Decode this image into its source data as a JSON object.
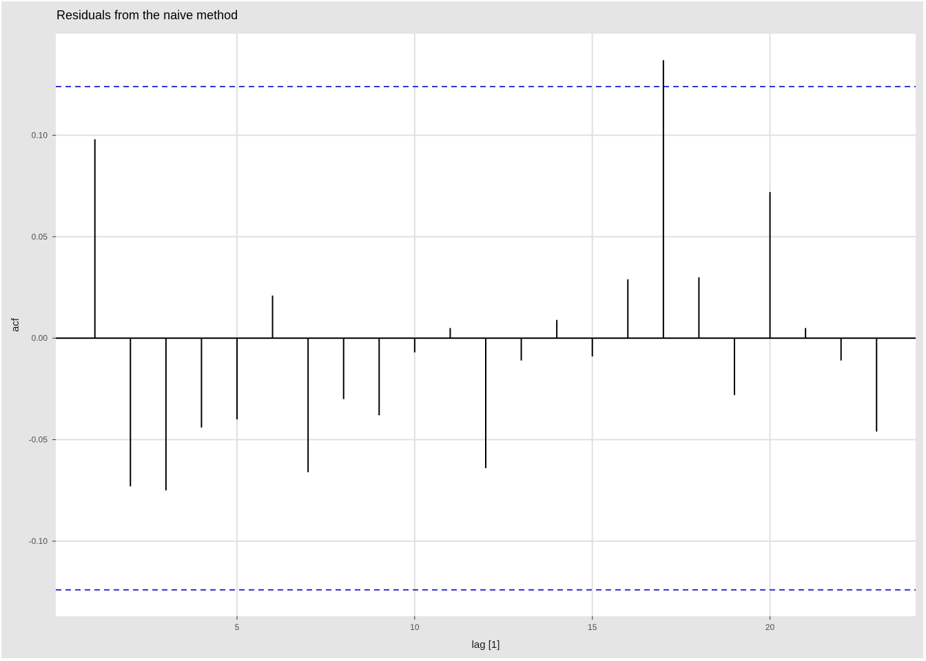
{
  "chart_data": {
    "type": "bar",
    "subtype": "acf",
    "title": "Residuals from the naive method",
    "xlabel": "lag [1]",
    "ylabel": "acf",
    "x": [
      1,
      2,
      3,
      4,
      5,
      6,
      7,
      8,
      9,
      10,
      11,
      12,
      13,
      14,
      15,
      16,
      17,
      18,
      19,
      20,
      21,
      22,
      23
    ],
    "values": [
      0.098,
      -0.073,
      -0.075,
      -0.044,
      -0.04,
      0.021,
      -0.066,
      -0.03,
      -0.038,
      -0.007,
      0.005,
      -0.064,
      -0.011,
      0.009,
      -0.009,
      0.029,
      0.137,
      0.03,
      -0.028,
      0.072,
      0.005,
      -0.011,
      -0.046
    ],
    "confidence_bounds": [
      -0.124,
      0.124
    ],
    "xlim": [
      -0.1,
      24.1
    ],
    "ylim": [
      -0.137,
      0.15
    ],
    "x_ticks": [
      5,
      10,
      15,
      20
    ],
    "y_ticks": [
      -0.1,
      -0.05,
      0.0,
      0.05,
      0.1
    ],
    "x_tick_labels": [
      "5",
      "10",
      "15",
      "20"
    ],
    "y_tick_labels": [
      "-0.10",
      "-0.05",
      "0.00",
      "0.05",
      "0.10"
    ],
    "grid": true,
    "colors": {
      "panel_background": "#ebebeb",
      "plot_background": "#ffffff",
      "grid": "#e0e0e0",
      "bar": "#000000",
      "bounds": "#0000cc"
    }
  }
}
